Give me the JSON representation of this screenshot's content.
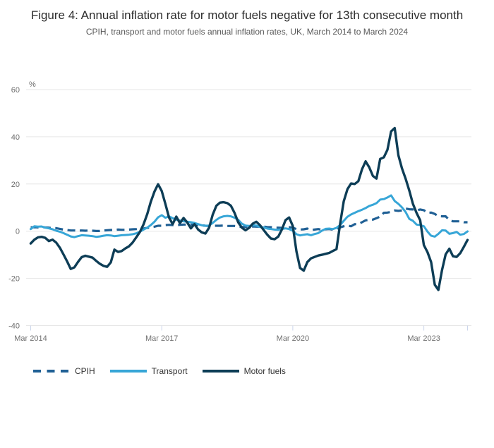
{
  "figure": {
    "title": "Figure 4: Annual inflation rate for motor fuels negative for 13th consecutive month",
    "subtitle": "CPIH, transport and motor fuels annual inflation rates, UK, March 2014 to March 2024"
  },
  "chart_data": {
    "type": "line",
    "title": "Figure 4: Annual inflation rate for motor fuels negative for 13th consecutive month",
    "subtitle": "CPIH, transport and motor fuels annual inflation rates, UK, March 2014 to March 2024",
    "unit_label": "%",
    "x_frequency": "monthly",
    "x_start": "Mar 2014",
    "x_end": "Mar 2024",
    "x_tick_labels": [
      "Mar 2014",
      "Mar 2017",
      "Mar 2020",
      "Mar 2023"
    ],
    "x_tick_months": [
      0,
      36,
      72,
      108
    ],
    "extra_tick_months": [
      120
    ],
    "y_ticks": [
      60,
      40,
      20,
      0,
      -20,
      -40
    ],
    "ylim": [
      -40,
      60
    ],
    "grid": "horizontal",
    "grid_color": "#e6e6e6",
    "tick_color": "#ccd6eb",
    "legend_position": "bottom",
    "series": [
      {
        "name": "CPIH",
        "color": "#206095",
        "style": "dashed",
        "values": [
          1.6,
          1.7,
          1.6,
          1.8,
          1.6,
          1.5,
          1.3,
          1.3,
          1.0,
          0.7,
          0.5,
          0.3,
          0.3,
          0.2,
          0.3,
          0.2,
          0.3,
          0.2,
          0.1,
          0.1,
          0.3,
          0.4,
          0.5,
          0.5,
          0.7,
          0.6,
          0.6,
          0.7,
          0.8,
          0.9,
          1.1,
          1.1,
          1.4,
          1.7,
          1.9,
          2.3,
          2.3,
          2.6,
          2.7,
          2.6,
          2.6,
          2.7,
          2.8,
          2.8,
          2.8,
          2.7,
          2.7,
          2.5,
          2.3,
          2.2,
          2.3,
          2.3,
          2.3,
          2.4,
          2.2,
          2.2,
          2.2,
          2.0,
          1.8,
          1.8,
          1.8,
          2.0,
          1.9,
          1.9,
          2.0,
          1.7,
          1.7,
          1.5,
          1.5,
          1.4,
          1.8,
          1.7,
          1.5,
          0.9,
          0.7,
          0.8,
          1.1,
          0.5,
          0.7,
          0.9,
          0.6,
          0.8,
          0.9,
          0.7,
          1.0,
          1.6,
          2.1,
          2.4,
          2.1,
          3.0,
          2.9,
          3.8,
          4.6,
          4.8,
          4.9,
          5.5,
          6.2,
          7.8,
          7.9,
          8.2,
          8.8,
          8.6,
          8.8,
          9.6,
          9.3,
          9.2,
          8.8,
          9.2,
          8.9,
          7.8,
          7.9,
          7.3,
          6.4,
          6.3,
          6.3,
          4.7,
          4.2,
          4.2,
          4.2,
          3.8,
          3.8
        ]
      },
      {
        "name": "Transport",
        "color": "#37A6D7",
        "style": "solid",
        "values": [
          0.9,
          2.1,
          1.9,
          2.0,
          1.5,
          1.2,
          0.8,
          0.2,
          -0.2,
          -0.8,
          -1.5,
          -2.2,
          -2.5,
          -2.1,
          -1.7,
          -1.8,
          -1.9,
          -2.1,
          -2.4,
          -2.2,
          -1.9,
          -1.7,
          -1.8,
          -2.1,
          -1.9,
          -1.7,
          -1.6,
          -1.5,
          -1.3,
          -0.9,
          -0.2,
          0.7,
          1.5,
          2.6,
          4.0,
          5.9,
          6.8,
          5.7,
          6.3,
          5.5,
          4.9,
          4.5,
          4.2,
          4.0,
          3.8,
          3.5,
          3.0,
          2.5,
          2.3,
          2.4,
          3.5,
          4.8,
          5.8,
          6.3,
          6.5,
          6.3,
          5.7,
          4.8,
          3.2,
          2.4,
          2.2,
          2.5,
          2.4,
          1.8,
          1.6,
          1.1,
          0.9,
          0.7,
          0.6,
          0.9,
          1.2,
          0.9,
          0.2,
          -1.3,
          -1.8,
          -1.5,
          -1.3,
          -1.7,
          -1.2,
          -0.8,
          0.2,
          1.0,
          1.1,
          0.9,
          1.4,
          2.6,
          4.4,
          6.1,
          7.1,
          7.8,
          8.5,
          9.1,
          9.8,
          10.7,
          11.2,
          11.9,
          13.4,
          13.6,
          14.3,
          15.2,
          12.8,
          11.6,
          10.1,
          8.1,
          5.2,
          4.4,
          2.8,
          2.6,
          2.1,
          -0.2,
          -1.9,
          -2.3,
          -1.1,
          0.4,
          0.3,
          -1.1,
          -0.8,
          -0.3,
          -1.5,
          -1.2,
          -0.1
        ]
      },
      {
        "name": "Motor fuels",
        "color": "#0D3D56",
        "style": "solid",
        "values": [
          -5.2,
          -3.6,
          -2.6,
          -2.4,
          -2.8,
          -4.2,
          -3.6,
          -4.8,
          -7.0,
          -9.8,
          -12.8,
          -16.0,
          -15.3,
          -13.0,
          -11.0,
          -10.4,
          -10.8,
          -11.2,
          -12.6,
          -13.8,
          -14.7,
          -15.1,
          -13.2,
          -7.8,
          -8.8,
          -8.4,
          -7.3,
          -6.4,
          -4.8,
          -2.6,
          -0.3,
          2.9,
          7.2,
          12.5,
          16.8,
          19.9,
          17.0,
          11.5,
          5.8,
          3.0,
          6.2,
          3.4,
          5.6,
          3.7,
          1.2,
          3.0,
          0.7,
          -0.5,
          -1.0,
          1.5,
          7.0,
          10.8,
          12.1,
          12.3,
          11.9,
          10.8,
          7.7,
          3.8,
          1.5,
          0.4,
          1.4,
          3.2,
          4.0,
          2.5,
          0.5,
          -1.5,
          -3.1,
          -3.4,
          -2.3,
          0.7,
          4.7,
          5.8,
          2.2,
          -8.6,
          -15.6,
          -16.7,
          -13.1,
          -11.5,
          -10.9,
          -10.3,
          -10.0,
          -9.6,
          -9.2,
          -8.4,
          -7.6,
          3.2,
          12.7,
          17.8,
          20.2,
          20.0,
          21.2,
          26.2,
          29.6,
          27.1,
          23.4,
          22.3,
          30.6,
          31.3,
          34.5,
          42.3,
          43.7,
          32.2,
          26.6,
          22.2,
          17.2,
          11.6,
          7.7,
          4.6,
          -5.9,
          -8.9,
          -13.1,
          -22.7,
          -24.9,
          -16.4,
          -9.8,
          -7.4,
          -10.6,
          -10.9,
          -9.3,
          -6.6,
          -3.7
        ]
      }
    ]
  }
}
